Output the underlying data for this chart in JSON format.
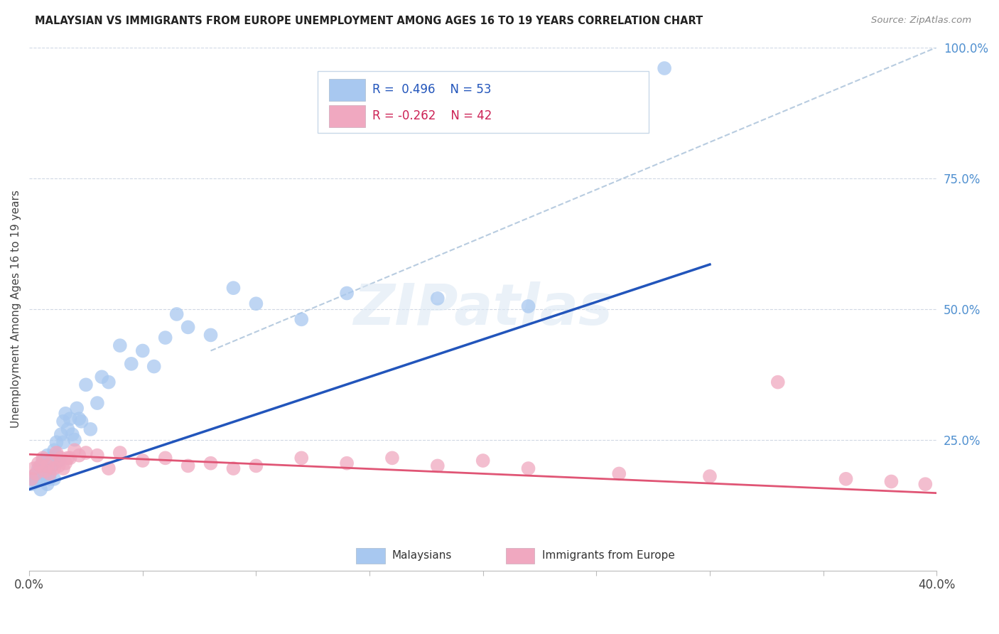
{
  "title": "MALAYSIAN VS IMMIGRANTS FROM EUROPE UNEMPLOYMENT AMONG AGES 16 TO 19 YEARS CORRELATION CHART",
  "source": "Source: ZipAtlas.com",
  "ylabel": "Unemployment Among Ages 16 to 19 years",
  "xlim": [
    0.0,
    0.4
  ],
  "ylim": [
    0.0,
    1.0
  ],
  "blue_R": 0.496,
  "blue_N": 53,
  "pink_R": -0.262,
  "pink_N": 42,
  "blue_color": "#a8c8f0",
  "pink_color": "#f0a8c0",
  "blue_line_color": "#2255bb",
  "pink_line_color": "#e05575",
  "dashed_line_color": "#b8cce0",
  "watermark": "ZIPatlas",
  "legend_label_blue": "Malaysians",
  "legend_label_pink": "Immigrants from Europe",
  "blue_line_x0": 0.0,
  "blue_line_y0": 0.155,
  "blue_line_x1": 0.3,
  "blue_line_y1": 0.585,
  "pink_line_x0": 0.0,
  "pink_line_y0": 0.222,
  "pink_line_x1": 0.4,
  "pink_line_y1": 0.148,
  "dash_line_x0": 0.08,
  "dash_line_y0": 0.42,
  "dash_line_x1": 0.4,
  "dash_line_y1": 1.0,
  "blue_pts_x": [
    0.001,
    0.002,
    0.003,
    0.004,
    0.004,
    0.005,
    0.005,
    0.006,
    0.006,
    0.007,
    0.007,
    0.008,
    0.008,
    0.009,
    0.009,
    0.01,
    0.01,
    0.011,
    0.011,
    0.012,
    0.012,
    0.013,
    0.014,
    0.015,
    0.015,
    0.016,
    0.017,
    0.018,
    0.019,
    0.02,
    0.021,
    0.022,
    0.023,
    0.025,
    0.027,
    0.03,
    0.032,
    0.035,
    0.04,
    0.045,
    0.05,
    0.055,
    0.06,
    0.065,
    0.07,
    0.08,
    0.09,
    0.1,
    0.12,
    0.14,
    0.18,
    0.22,
    0.28
  ],
  "blue_pts_y": [
    0.165,
    0.18,
    0.17,
    0.195,
    0.185,
    0.2,
    0.155,
    0.21,
    0.175,
    0.2,
    0.185,
    0.22,
    0.165,
    0.195,
    0.175,
    0.2,
    0.215,
    0.23,
    0.175,
    0.245,
    0.22,
    0.21,
    0.26,
    0.285,
    0.245,
    0.3,
    0.27,
    0.29,
    0.26,
    0.25,
    0.31,
    0.29,
    0.285,
    0.355,
    0.27,
    0.32,
    0.37,
    0.36,
    0.43,
    0.395,
    0.42,
    0.39,
    0.445,
    0.49,
    0.465,
    0.45,
    0.54,
    0.51,
    0.48,
    0.53,
    0.52,
    0.505,
    0.96
  ],
  "pink_pts_x": [
    0.001,
    0.002,
    0.003,
    0.004,
    0.005,
    0.006,
    0.007,
    0.008,
    0.009,
    0.01,
    0.011,
    0.012,
    0.013,
    0.014,
    0.015,
    0.016,
    0.017,
    0.018,
    0.02,
    0.022,
    0.025,
    0.03,
    0.035,
    0.04,
    0.05,
    0.06,
    0.07,
    0.08,
    0.09,
    0.1,
    0.12,
    0.14,
    0.16,
    0.18,
    0.2,
    0.22,
    0.26,
    0.3,
    0.33,
    0.36,
    0.38,
    0.395
  ],
  "pink_pts_y": [
    0.175,
    0.195,
    0.185,
    0.205,
    0.2,
    0.215,
    0.19,
    0.2,
    0.185,
    0.21,
    0.195,
    0.225,
    0.2,
    0.215,
    0.195,
    0.205,
    0.215,
    0.215,
    0.23,
    0.22,
    0.225,
    0.22,
    0.195,
    0.225,
    0.21,
    0.215,
    0.2,
    0.205,
    0.195,
    0.2,
    0.215,
    0.205,
    0.215,
    0.2,
    0.21,
    0.195,
    0.185,
    0.18,
    0.36,
    0.175,
    0.17,
    0.165
  ]
}
